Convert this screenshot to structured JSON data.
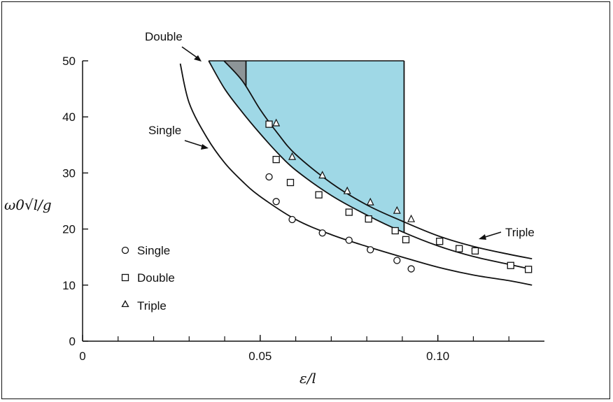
{
  "chart_data": {
    "type": "scatter",
    "xlim": [
      0,
      0.13
    ],
    "ylim": [
      0,
      50
    ],
    "x_ticks": [
      {
        "value": 0,
        "label": "0"
      },
      {
        "value": 0.05,
        "label": "0.05"
      },
      {
        "value": 0.1,
        "label": "0.10"
      }
    ],
    "y_ticks": [
      {
        "value": 0,
        "label": "0"
      },
      {
        "value": 10,
        "label": "10"
      },
      {
        "value": 20,
        "label": "20"
      },
      {
        "value": 30,
        "label": "30"
      },
      {
        "value": 40,
        "label": "40"
      },
      {
        "value": 50,
        "label": "50"
      }
    ],
    "ylabel": "ω0√l/g",
    "xlabel": "ε/l",
    "legend_position": "bottom-left",
    "shaded_region": {
      "x_from": 0.0355,
      "x_to": 0.0905,
      "y_top": 50,
      "color": "#9fd8e6",
      "bounded_below_by": "Double"
    },
    "gray_region": {
      "x_from": 0.0395,
      "x_to": 0.046,
      "y_top": 50,
      "color": "#8a8a8a"
    },
    "vertical_lines": [
      0.046,
      0.0905
    ],
    "series": [
      {
        "name": "Single",
        "marker": "circle",
        "curve": [
          [
            0.0275,
            49.5
          ],
          [
            0.03,
            42.5
          ],
          [
            0.035,
            36.3
          ],
          [
            0.04,
            31.8
          ],
          [
            0.045,
            28.5
          ],
          [
            0.05,
            25.8
          ],
          [
            0.06,
            21.7
          ],
          [
            0.07,
            19.0
          ],
          [
            0.08,
            16.9
          ],
          [
            0.09,
            15.0
          ],
          [
            0.1,
            13.2
          ],
          [
            0.11,
            11.8
          ],
          [
            0.12,
            10.8
          ],
          [
            0.1265,
            10.0
          ]
        ],
        "points": [
          [
            0.0525,
            29.3
          ],
          [
            0.0545,
            24.9
          ],
          [
            0.059,
            21.7
          ],
          [
            0.0675,
            19.3
          ],
          [
            0.075,
            18.0
          ],
          [
            0.081,
            16.3
          ],
          [
            0.0885,
            14.4
          ],
          [
            0.0925,
            12.9
          ]
        ]
      },
      {
        "name": "Double",
        "marker": "square",
        "curve": [
          [
            0.0355,
            50
          ],
          [
            0.04,
            45
          ],
          [
            0.045,
            40.8
          ],
          [
            0.05,
            37.0
          ],
          [
            0.055,
            33.5
          ],
          [
            0.06,
            30.5
          ],
          [
            0.07,
            26.0
          ],
          [
            0.08,
            22.5
          ],
          [
            0.09,
            19.5
          ],
          [
            0.1,
            17.0
          ],
          [
            0.11,
            15.1
          ],
          [
            0.12,
            13.7
          ],
          [
            0.1265,
            12.8
          ]
        ],
        "points": [
          [
            0.0525,
            38.7
          ],
          [
            0.0545,
            32.4
          ],
          [
            0.0585,
            28.3
          ],
          [
            0.0665,
            26.1
          ],
          [
            0.075,
            23.0
          ],
          [
            0.0805,
            21.8
          ],
          [
            0.088,
            19.7
          ],
          [
            0.091,
            18.1
          ],
          [
            0.1005,
            17.8
          ],
          [
            0.106,
            16.5
          ],
          [
            0.1105,
            16.1
          ],
          [
            0.1205,
            13.5
          ],
          [
            0.1255,
            12.8
          ]
        ]
      },
      {
        "name": "Triple",
        "marker": "triangle",
        "curve": [
          [
            0.0398,
            50
          ],
          [
            0.045,
            46.4
          ],
          [
            0.05,
            41.3
          ],
          [
            0.055,
            37.0
          ],
          [
            0.06,
            33.3
          ],
          [
            0.07,
            28.2
          ],
          [
            0.08,
            24.3
          ],
          [
            0.09,
            21.4
          ],
          [
            0.1,
            18.8
          ],
          [
            0.11,
            16.9
          ],
          [
            0.12,
            15.5
          ],
          [
            0.1265,
            14.7
          ]
        ],
        "points": [
          [
            0.0545,
            38.9
          ],
          [
            0.059,
            32.9
          ],
          [
            0.0675,
            29.6
          ],
          [
            0.0745,
            26.8
          ],
          [
            0.081,
            24.8
          ],
          [
            0.0885,
            23.3
          ],
          [
            0.0925,
            21.8
          ]
        ]
      }
    ],
    "annotations": [
      {
        "text": "Double",
        "target": "Double"
      },
      {
        "text": "Single",
        "target": "Single"
      },
      {
        "text": "Triple",
        "target": "Triple"
      }
    ]
  }
}
